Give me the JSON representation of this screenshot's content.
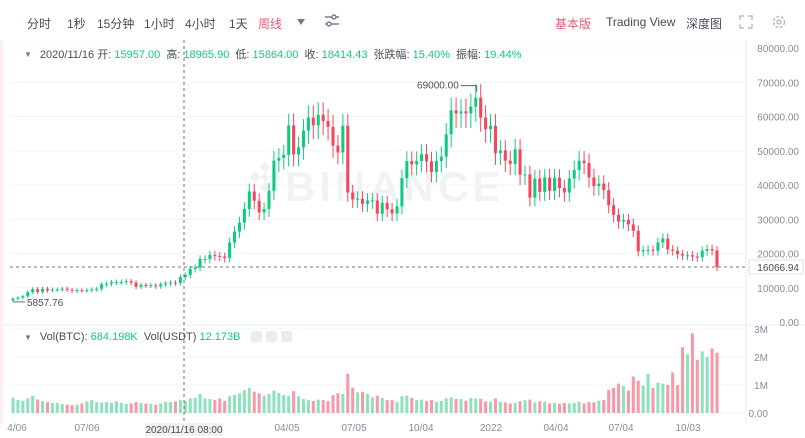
{
  "toolbar": {
    "intervals": [
      "分时",
      "1秒",
      "15分钟",
      "1小时",
      "4小时",
      "1天",
      "周线"
    ],
    "active_interval": "周线",
    "views": [
      "基本版",
      "Trading View",
      "深度图"
    ],
    "active_view": "基本版"
  },
  "ohlc": {
    "date": "2020/11/16",
    "open_label": "开:",
    "open": "15957.00",
    "high_label": "高:",
    "high": "18965.90",
    "low_label": "低:",
    "low": "15864.00",
    "close_label": "收:",
    "close": "18414.43",
    "change_label": "张跌幅:",
    "change": "15.40%",
    "amp_label": "振幅:",
    "amp": "19.44%"
  },
  "vol": {
    "btc_label": "Vol(BTC):",
    "btc": "684.198K",
    "usdt_label": "Vol(USDT)",
    "usdt": "12.173B"
  },
  "chart": {
    "watermark": "BINANCE",
    "price_ticks": [
      "80000.00",
      "70000.00",
      "60000.00",
      "50000.00",
      "40000.00",
      "30000.00",
      "20000.00",
      "10000.00",
      "0.00"
    ],
    "vol_ticks": [
      "3M",
      "2M",
      "1M",
      "0.00"
    ],
    "current_price": "16066.94",
    "annotation_high": "69000.00",
    "annotation_low": "5857.76",
    "crosshair_date": "2020/11/16 08:00",
    "x_labels": [
      "4/06",
      "07/06",
      "2020/11/16 08:00",
      "04/05",
      "07/05",
      "10/04",
      "2022",
      "04/04",
      "07/04",
      "10/03"
    ],
    "colors": {
      "up": "#0ecb81",
      "down": "#f6465d",
      "up_vol": "#8fe1be",
      "down_vol": "#f59aa6"
    }
  },
  "chart_data": {
    "type": "candlestick",
    "interval": "weekly",
    "x_start": "2020-04-06",
    "x_end": "2022-11-14",
    "ylim": [
      0,
      80000
    ],
    "vol_ylim": [
      0,
      3000000
    ],
    "annotations": [
      {
        "label": "69000.00",
        "value": 69000
      },
      {
        "label": "5857.76",
        "value": 5857.76
      }
    ],
    "current_price": 16066.94,
    "closes": [
      6800,
      7100,
      7500,
      8700,
      9600,
      8800,
      9700,
      9200,
      9500,
      9500,
      9700,
      9400,
      9100,
      9300,
      9200,
      9300,
      9500,
      9700,
      11000,
      11200,
      11600,
      11700,
      11700,
      11900,
      11500,
      10300,
      10800,
      10700,
      10700,
      10400,
      11000,
      11300,
      11500,
      11400,
      13100,
      13700,
      15500,
      15900,
      18400,
      18400,
      19600,
      19300,
      19100,
      18700,
      23200,
      26400,
      29000,
      33000,
      38100,
      35400,
      32000,
      33000,
      38300,
      47100,
      47900,
      48800,
      57400,
      48900,
      51000,
      55900,
      59700,
      57400,
      60500,
      58700,
      57000,
      51500,
      49500,
      57300,
      37800,
      35800,
      36000,
      34500,
      35500,
      35500,
      31600,
      34800,
      32900,
      31700,
      33800,
      42000,
      47000,
      46000,
      47000,
      49000,
      46900,
      43800,
      47000,
      48300,
      54800,
      61800,
      60900,
      61500,
      60900,
      62900,
      65500,
      59700,
      56300,
      57300,
      49300,
      50100,
      47100,
      46200,
      50400,
      43000,
      43100,
      36300,
      41900,
      38000,
      42200,
      38300,
      42100,
      39100,
      37800,
      41900,
      44400,
      47100,
      46400,
      42200,
      39700,
      40400,
      38500,
      34100,
      31300,
      29300,
      29800,
      28500,
      26600,
      20600,
      21000,
      21100,
      20800,
      23200,
      24400,
      21200,
      20800,
      19800,
      19400,
      19500,
      19100,
      18900,
      20800,
      21300,
      20900,
      16000
    ],
    "volumes": [
      540000,
      470000,
      440000,
      520000,
      610000,
      480000,
      420000,
      390000,
      360000,
      350000,
      320000,
      300000,
      280000,
      300000,
      340000,
      420000,
      460000,
      390000,
      370000,
      390000,
      360000,
      420000,
      360000,
      330000,
      340000,
      390000,
      360000,
      340000,
      320000,
      300000,
      340000,
      400000,
      390000,
      410000,
      460000,
      430000,
      520000,
      540000,
      684198,
      520000,
      500000,
      460000,
      520000,
      430000,
      600000,
      650000,
      700000,
      820000,
      900000,
      760000,
      700000,
      620000,
      680000,
      800000,
      720000,
      640000,
      610000,
      780000,
      600000,
      500000,
      460000,
      430000,
      480000,
      460000,
      420000,
      640000,
      700000,
      680000,
      1400000,
      900000,
      740000,
      760000,
      680000,
      560000,
      620000,
      540000,
      460000,
      460000,
      400000,
      600000,
      620000,
      540000,
      460000,
      480000,
      430000,
      460000,
      400000,
      430000,
      520000,
      560000,
      500000,
      500000,
      440000,
      540000,
      520000,
      500000,
      420000,
      400000,
      520000,
      400000,
      380000,
      340000,
      360000,
      420000,
      460000,
      480000,
      380000,
      420000,
      400000,
      340000,
      360000,
      330000,
      360000,
      340000,
      360000,
      400000,
      340000,
      390000,
      380000,
      440000,
      470000,
      820000,
      900000,
      1050000,
      960000,
      800000,
      1300000,
      1150000,
      980000,
      1400000,
      900000,
      1080000,
      1050000,
      1000000,
      1450000,
      1000000,
      2350000,
      2100000,
      2850000,
      1900000,
      2200000,
      2000000,
      2300000,
      2150000
    ]
  }
}
